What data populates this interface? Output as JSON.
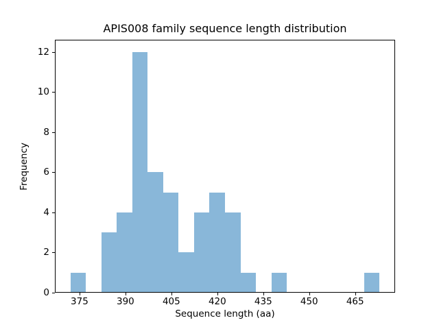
{
  "figure": {
    "background_color": "#ffffff",
    "text_color": "#000000"
  },
  "chart_data": {
    "type": "bar",
    "subtype": "histogram",
    "title": "APIS008 family sequence length distribution",
    "xlabel": "Sequence length (aa)",
    "ylabel": "Frequency",
    "bar_color": "#89b7d9",
    "spine_color": "#000000",
    "grid": false,
    "bin_edges": [
      372.0,
      377.05,
      382.1,
      387.15,
      392.2,
      397.25,
      402.3,
      407.35,
      412.4,
      417.45,
      422.5,
      427.55,
      432.6,
      437.65,
      442.7,
      447.75,
      452.8,
      457.85,
      462.9,
      467.95,
      473.0
    ],
    "counts": [
      1,
      0,
      3,
      4,
      12,
      6,
      5,
      2,
      4,
      5,
      4,
      1,
      0,
      1,
      0,
      0,
      0,
      0,
      0,
      1
    ],
    "xlim": [
      366.95,
      478.05
    ],
    "ylim": [
      0,
      12.6
    ],
    "xticks": [
      "375",
      "390",
      "405",
      "420",
      "435",
      "450",
      "465"
    ],
    "xtick_values": [
      375,
      390,
      405,
      420,
      435,
      450,
      465
    ],
    "yticks": [
      "0",
      "2",
      "4",
      "6",
      "8",
      "10",
      "12"
    ],
    "ytick_values": [
      0,
      2,
      4,
      6,
      8,
      10,
      12
    ]
  }
}
